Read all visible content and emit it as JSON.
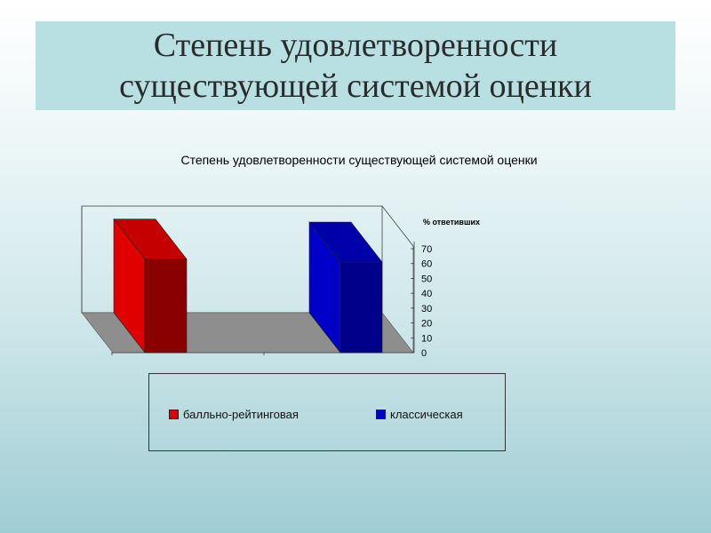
{
  "slide": {
    "title_line1": "Степень удовлетворенности",
    "title_line2": "существующей системой оценки"
  },
  "chart_data": {
    "type": "bar",
    "title": "Степень удовлетворенности существующей системой оценки",
    "ylabel": "% ответивших",
    "ylim": [
      0,
      70
    ],
    "yticks": [
      0,
      10,
      20,
      30,
      40,
      50,
      60,
      70
    ],
    "grid": false,
    "legend_position": "bottom",
    "series": [
      {
        "name": "балльно-рейтинговая",
        "values": [
          63
        ],
        "color": "#e00000"
      },
      {
        "name": "классическая",
        "values": [
          61
        ],
        "color": "#0000c8"
      }
    ]
  },
  "colors": {
    "red_front": "#e00000",
    "red_side": "#8a0000",
    "red_top": "#c40000",
    "blue_front": "#0000c8",
    "blue_side": "#00008a",
    "blue_top": "#0000aa",
    "floor": "#8e8e8e"
  }
}
